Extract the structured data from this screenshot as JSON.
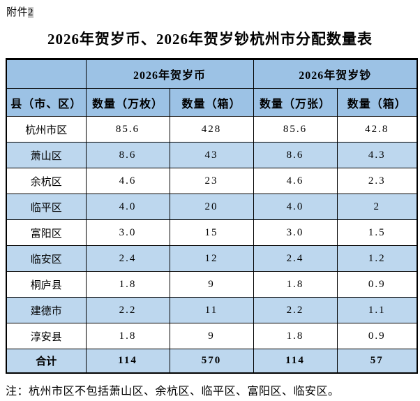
{
  "page": {
    "attachment_prefix": "附件",
    "attachment_number": "2",
    "title": "2026年贺岁币、2026年贺岁钞杭州市分配数量表",
    "note": "注：杭州市区不包括萧山区、余杭区、临平区、富阳区、临安区。"
  },
  "colors": {
    "header_bg": "#9CC2E5",
    "stripe_bg": "#BDD7EE",
    "border": "#000000",
    "field_shading": "#C9C9C9"
  },
  "table": {
    "group_headers": [
      {
        "label": "",
        "span": 1
      },
      {
        "label": "2026年贺岁币",
        "span": 2
      },
      {
        "label": "2026年贺岁钞",
        "span": 2
      }
    ],
    "column_headers": [
      "县（市、区）",
      "数量（万枚）",
      "数量（箱）",
      "数量（万张）",
      "数量（箱）"
    ],
    "rows": [
      {
        "region": "杭州市区",
        "values": [
          "85.6",
          "428",
          "85.6",
          "42.8"
        ]
      },
      {
        "region": "萧山区",
        "values": [
          "8.6",
          "43",
          "8.6",
          "4.3"
        ]
      },
      {
        "region": "余杭区",
        "values": [
          "4.6",
          "23",
          "4.6",
          "2.3"
        ]
      },
      {
        "region": "临平区",
        "values": [
          "4.0",
          "20",
          "4.0",
          "2"
        ]
      },
      {
        "region": "富阳区",
        "values": [
          "3.0",
          "15",
          "3.0",
          "1.5"
        ]
      },
      {
        "region": "临安区",
        "values": [
          "2.4",
          "12",
          "2.4",
          "1.2"
        ]
      },
      {
        "region": "桐庐县",
        "values": [
          "1.8",
          "9",
          "1.8",
          "0.9"
        ]
      },
      {
        "region": "建德市",
        "values": [
          "2.2",
          "11",
          "2.2",
          "1.1"
        ]
      },
      {
        "region": "淳安县",
        "values": [
          "1.8",
          "9",
          "1.8",
          "0.9"
        ]
      }
    ],
    "total_row": {
      "region": "合计",
      "values": [
        "114",
        "570",
        "114",
        "57"
      ]
    }
  }
}
